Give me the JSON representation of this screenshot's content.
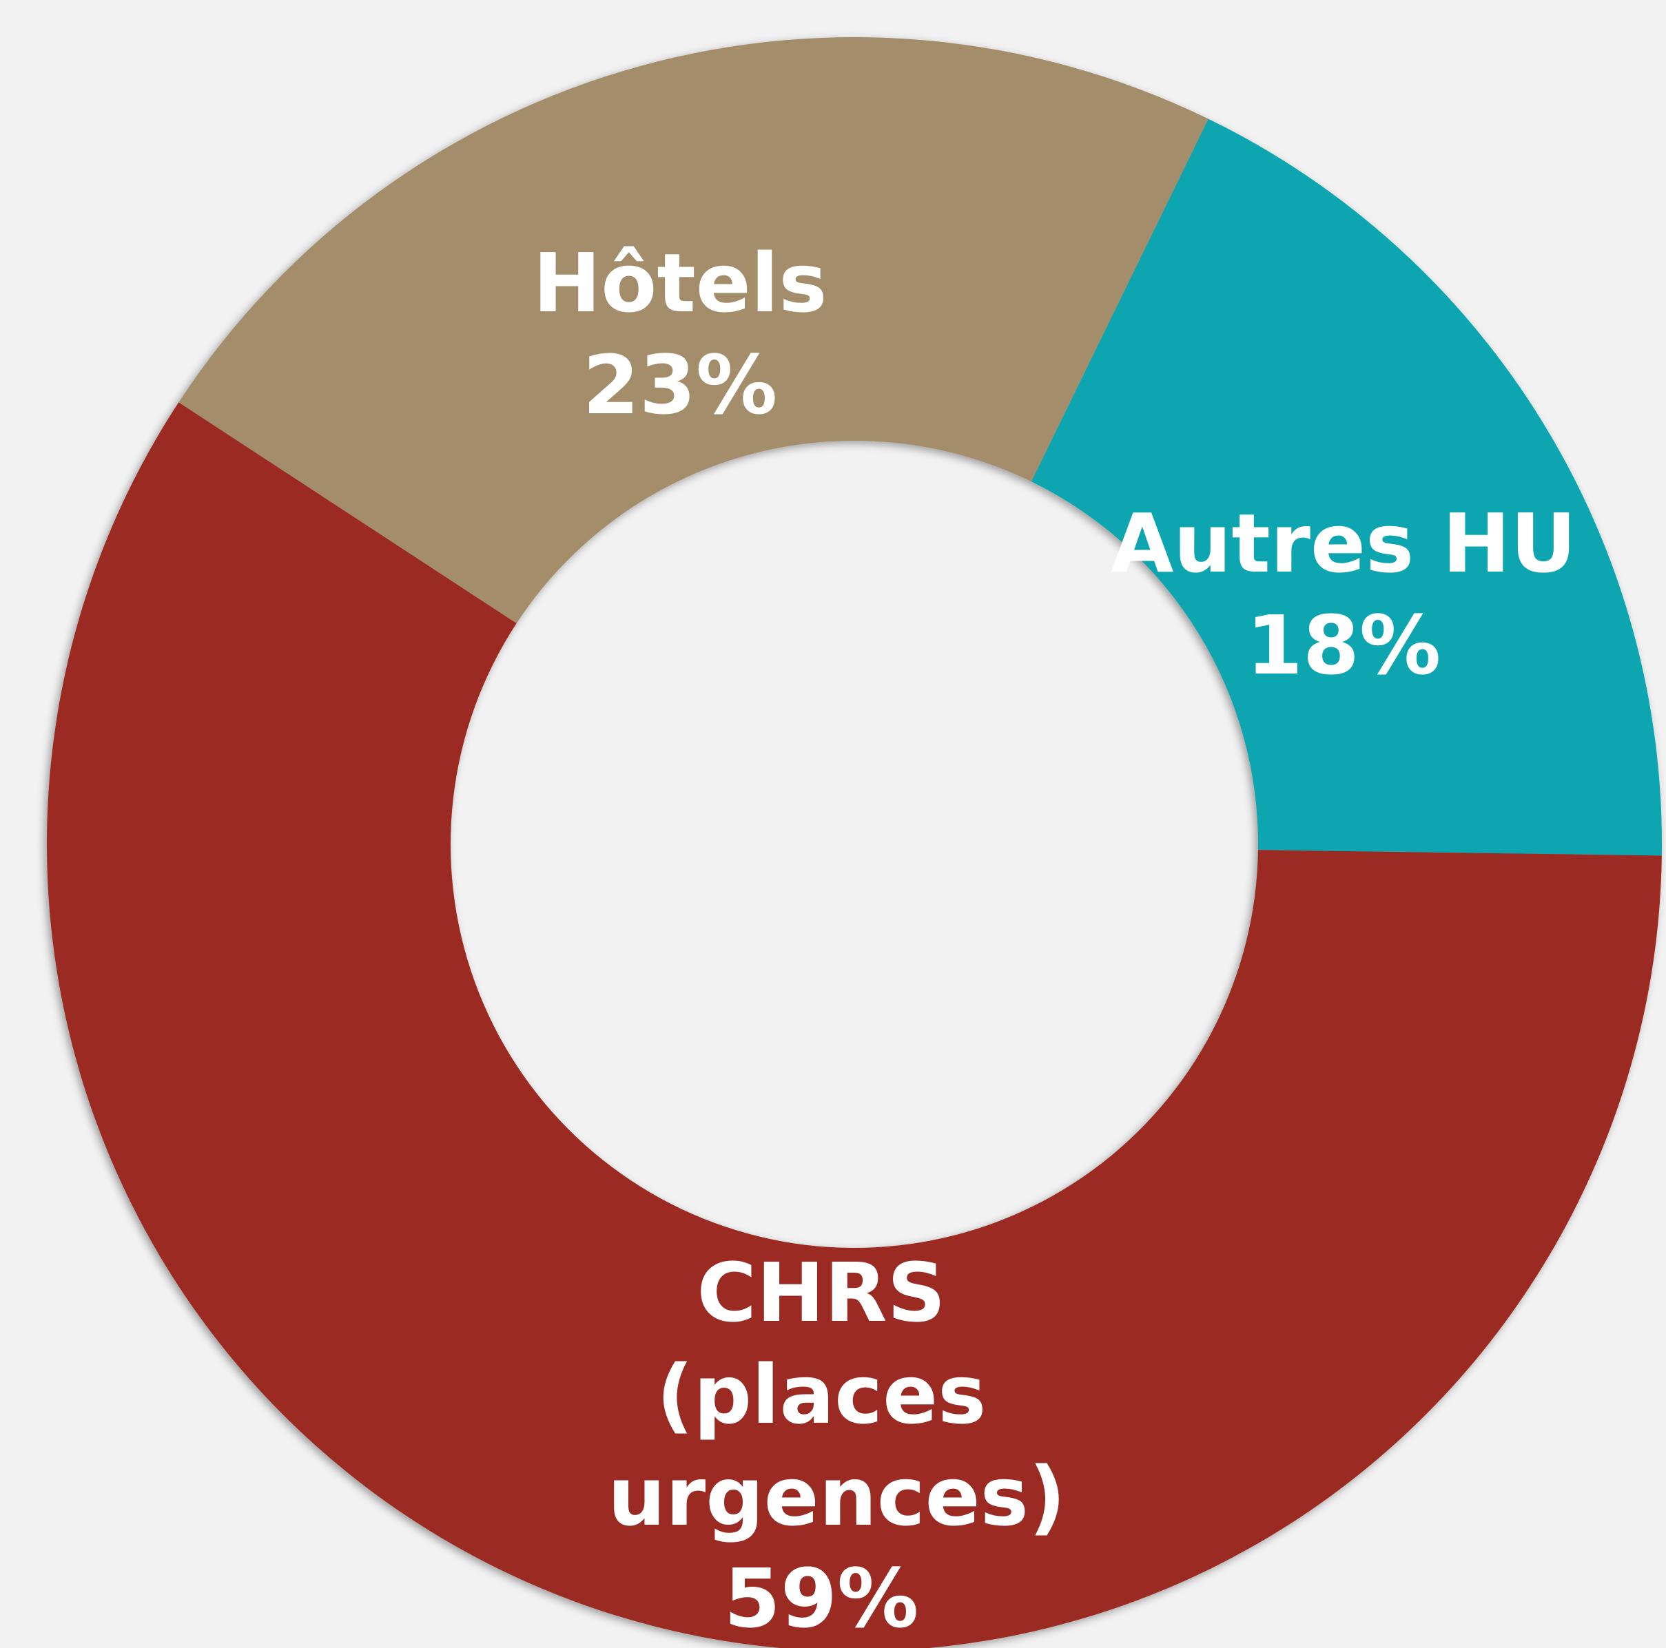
{
  "chart_data": {
    "type": "donut",
    "categories": [
      "Hôtels",
      "Autres HU",
      "CHRS (places urgences)"
    ],
    "values": [
      23,
      18,
      59
    ],
    "value_labels": [
      "23%",
      "18%",
      "59%"
    ],
    "colors": [
      "#a38d6b",
      "#07a6b0",
      "#9a2b20"
    ]
  }
}
